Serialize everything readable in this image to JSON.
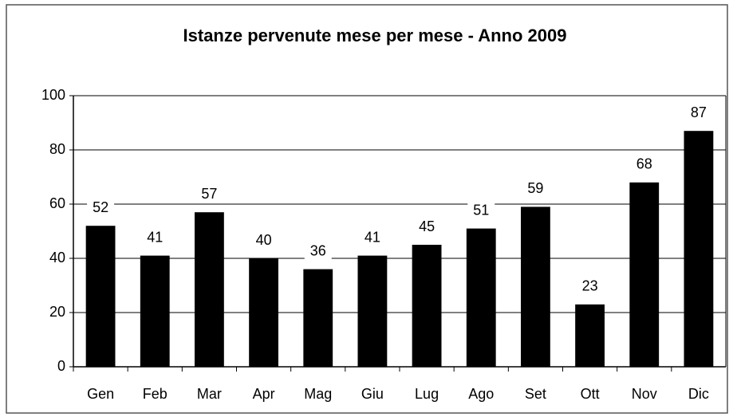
{
  "chart_data": {
    "type": "bar",
    "title": "Istanze pervenute mese per mese - Anno 2009",
    "categories": [
      "Gen",
      "Feb",
      "Mar",
      "Apr",
      "Mag",
      "Giu",
      "Lug",
      "Ago",
      "Set",
      "Ott",
      "Nov",
      "Dic"
    ],
    "values": [
      52,
      41,
      57,
      40,
      36,
      41,
      45,
      51,
      59,
      23,
      68,
      87
    ],
    "color": "#000000",
    "ylim": [
      0,
      100
    ],
    "yticks": [
      0,
      20,
      40,
      60,
      80,
      100
    ],
    "grid": true
  }
}
